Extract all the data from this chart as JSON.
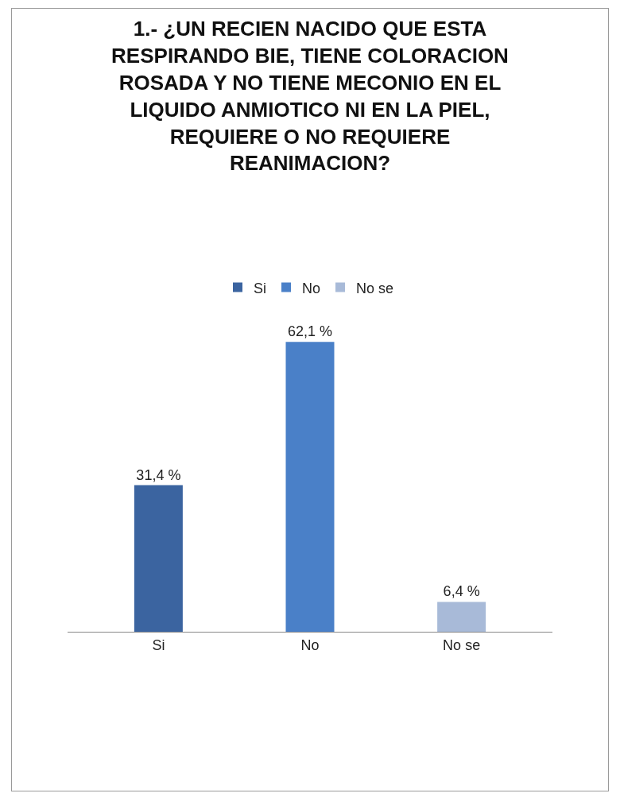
{
  "chart_data": {
    "type": "bar",
    "title": "1.- ¿UN RECIEN NACIDO QUE ESTA RESPIRANDO BIE, TIENE COLORACION ROSADA Y NO TIENE MECONIO EN EL LIQUIDO ANMIOTICO NI EN LA PIEL, REQUIERE O NO REQUIERE REANIMACION?",
    "categories": [
      "Si",
      "No",
      "No se"
    ],
    "series": [
      {
        "name": "Si",
        "color": "#3b64a0",
        "values": [
          31.4,
          null,
          null
        ],
        "value_labels": [
          "31,4 %",
          null,
          null
        ]
      },
      {
        "name": "No",
        "color": "#4a80c8",
        "values": [
          null,
          62.1,
          null
        ],
        "value_labels": [
          null,
          "62,1 %",
          null
        ]
      },
      {
        "name": "No se",
        "color": "#a8bad8",
        "values": [
          null,
          null,
          6.4
        ],
        "value_labels": [
          null,
          null,
          "6,4 %"
        ]
      }
    ],
    "legend": "top"
  }
}
